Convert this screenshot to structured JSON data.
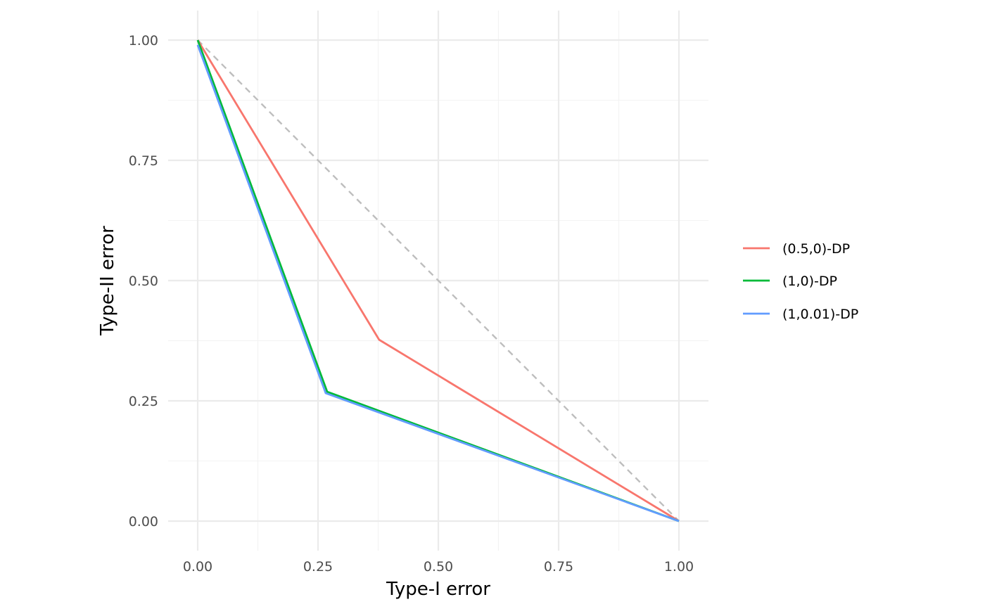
{
  "chart_data": {
    "type": "line",
    "xlabel": "Type-I error",
    "ylabel": "Type-II error",
    "xlim": [
      0,
      1
    ],
    "ylim": [
      0,
      1
    ],
    "x_ticks": [
      "0.00",
      "0.25",
      "0.50",
      "0.75",
      "1.00"
    ],
    "y_ticks": [
      "0.00",
      "0.25",
      "0.50",
      "0.75",
      "1.00"
    ],
    "grid": true,
    "legend_position": "right",
    "reference_line": {
      "style": "dashed",
      "color": "#bebebe",
      "x": [
        0,
        1
      ],
      "y": [
        1,
        0
      ]
    },
    "series": [
      {
        "name": "(0.5,0)-DP",
        "color": "#F8766D",
        "x": [
          0,
          0.377,
          1
        ],
        "y": [
          1,
          0.377,
          0
        ]
      },
      {
        "name": "(1,0)-DP",
        "color": "#00BA38",
        "x": [
          0,
          0.269,
          1
        ],
        "y": [
          1,
          0.269,
          0
        ]
      },
      {
        "name": "(1,0.01)-DP",
        "color": "#619CFF",
        "x": [
          0,
          0.266,
          1
        ],
        "y": [
          0.99,
          0.266,
          0
        ]
      }
    ]
  }
}
